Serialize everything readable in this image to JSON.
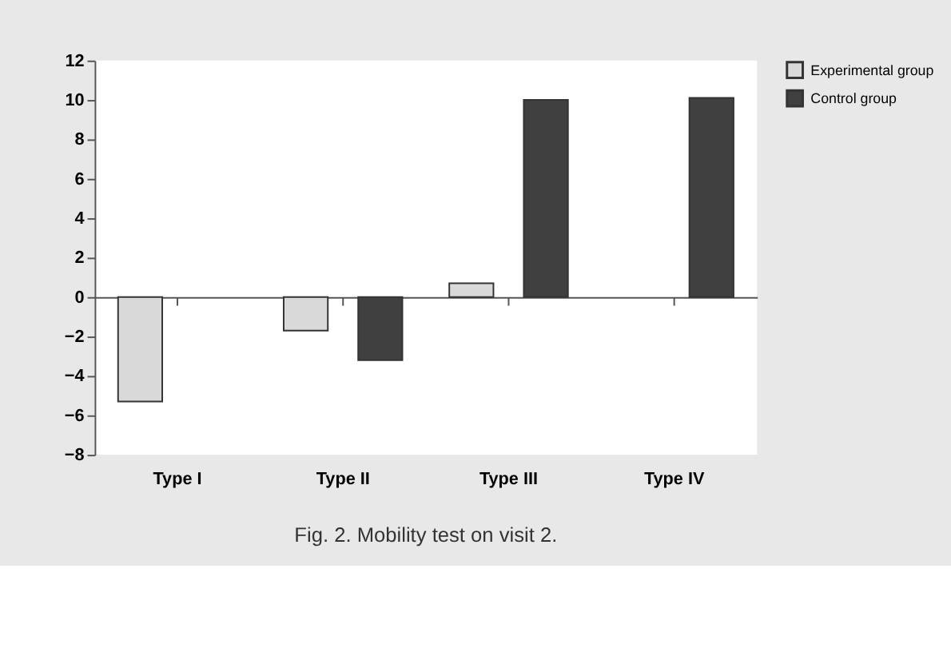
{
  "chart_data": {
    "type": "bar",
    "categories": [
      "Type I",
      "Type II",
      "Type III",
      "Type IV"
    ],
    "series": [
      {
        "name": "Experimental group",
        "color": "#d9d9d9",
        "values": [
          -5.3,
          -1.7,
          0.7,
          null
        ]
      },
      {
        "name": "Control group",
        "color": "#404040",
        "values": [
          null,
          -3.2,
          10.0,
          10.1
        ]
      }
    ],
    "ylim": [
      -8,
      12
    ],
    "yticks": [
      -8,
      -6,
      -4,
      -2,
      0,
      2,
      4,
      6,
      8,
      10,
      12
    ],
    "legend": "right",
    "annotations": [
      "Fig. 2. Mobility test on visit 2."
    ]
  }
}
